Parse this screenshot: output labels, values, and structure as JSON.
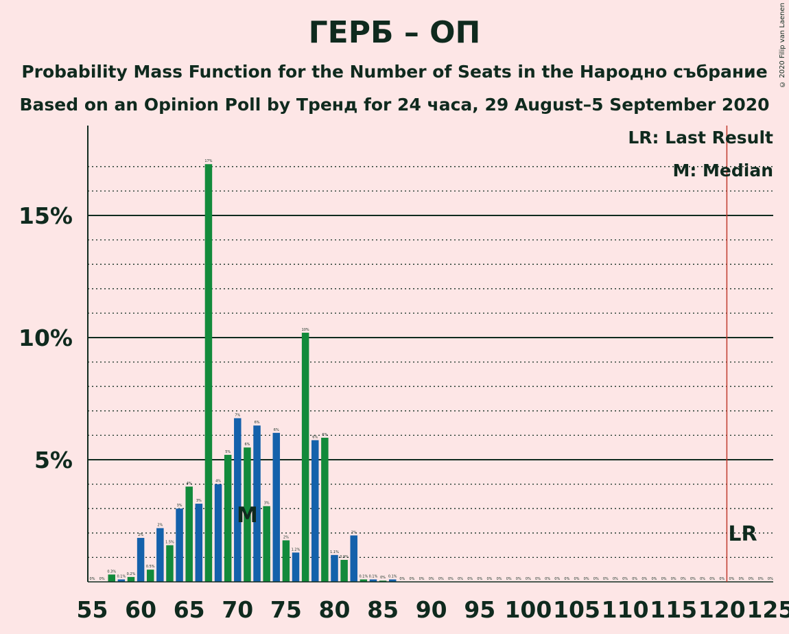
{
  "title": "ГЕРБ – ОП",
  "subtitle": "Probability Mass Function for the Number of Seats in the Народно събрание",
  "subtitle2": "Based on an Opinion Poll by Тренд for 24 часа, 29 August–5 September 2020",
  "copyright": "© 2020 Filip van Laenen",
  "legend": {
    "lr": "LR: Last Result",
    "m": "M: Median"
  },
  "colors": {
    "background": "#fde6e6",
    "blue": "#1461ab",
    "green": "#128a3b",
    "lr_line": "#c0392b",
    "text": "#0f2a1e"
  },
  "chart_data": {
    "type": "bar",
    "x": [
      55,
      56,
      57,
      58,
      59,
      60,
      61,
      62,
      63,
      64,
      65,
      66,
      67,
      68,
      69,
      70,
      71,
      72,
      73,
      74,
      75,
      76,
      77,
      78,
      79,
      80,
      81,
      82,
      83,
      84,
      85,
      86,
      87,
      88,
      89,
      90,
      91,
      92,
      93,
      94,
      95,
      96,
      97,
      98,
      99,
      100,
      101,
      102,
      103,
      104,
      105,
      106,
      107,
      108,
      109,
      110,
      111,
      112,
      113,
      114,
      115,
      116,
      117,
      118,
      119,
      120,
      121,
      122,
      123,
      124,
      125
    ],
    "values": [
      0,
      0,
      0.3,
      0.1,
      0.2,
      1.8,
      0.5,
      2.2,
      1.5,
      3.0,
      3.9,
      3.2,
      17.1,
      4.0,
      5.2,
      6.7,
      5.5,
      6.4,
      3.1,
      6.1,
      1.7,
      1.2,
      10.2,
      5.8,
      5.9,
      1.1,
      0.9,
      1.9,
      0.1,
      0.1,
      0.05,
      0.1,
      0,
      0,
      0,
      0,
      0,
      0,
      0,
      0,
      0,
      0,
      0,
      0,
      0,
      0,
      0,
      0,
      0,
      0,
      0,
      0,
      0,
      0,
      0,
      0,
      0,
      0,
      0,
      0,
      0,
      0,
      0,
      0,
      0,
      0,
      0,
      0,
      0,
      0,
      0
    ],
    "labels": [
      "0%",
      "0%",
      "0.3%",
      "0.1%",
      "0.2%",
      "2%",
      "0.5%",
      "2%",
      "1.5%",
      "3%",
      "4%",
      "3%",
      "17%",
      "4%",
      "5%",
      "7%",
      "6%",
      "6%",
      "3%",
      "6%",
      "2%",
      "1.2%",
      "10%",
      "6%",
      "6%",
      "1.1%",
      "0.9%",
      "2%",
      "0.1%",
      "0.1%",
      "0%",
      "0.1%",
      "0%",
      "0%",
      "0%",
      "0%",
      "0%",
      "0%",
      "0%",
      "0%",
      "0%",
      "0%",
      "0%",
      "0%",
      "0%",
      "0%",
      "0%",
      "0%",
      "0%",
      "0%",
      "0%",
      "0%",
      "0%",
      "0%",
      "0%",
      "0%",
      "0%",
      "0%",
      "0%",
      "0%",
      "0%",
      "0%",
      "0%",
      "0%",
      "0%",
      "0%",
      "0%",
      "0%",
      "0%",
      "0%",
      "0%"
    ],
    "x_ticks": [
      "55",
      "60",
      "65",
      "70",
      "75",
      "80",
      "85",
      "90",
      "95",
      "100",
      "105",
      "110",
      "115",
      "120",
      "125"
    ],
    "y_ticks": [
      "5%",
      "10%",
      "15%"
    ],
    "ylim": [
      0,
      18.5
    ],
    "xlim": [
      55,
      125
    ],
    "median": 71,
    "median_label": "M",
    "last_result": 121,
    "last_result_label": "LR"
  }
}
